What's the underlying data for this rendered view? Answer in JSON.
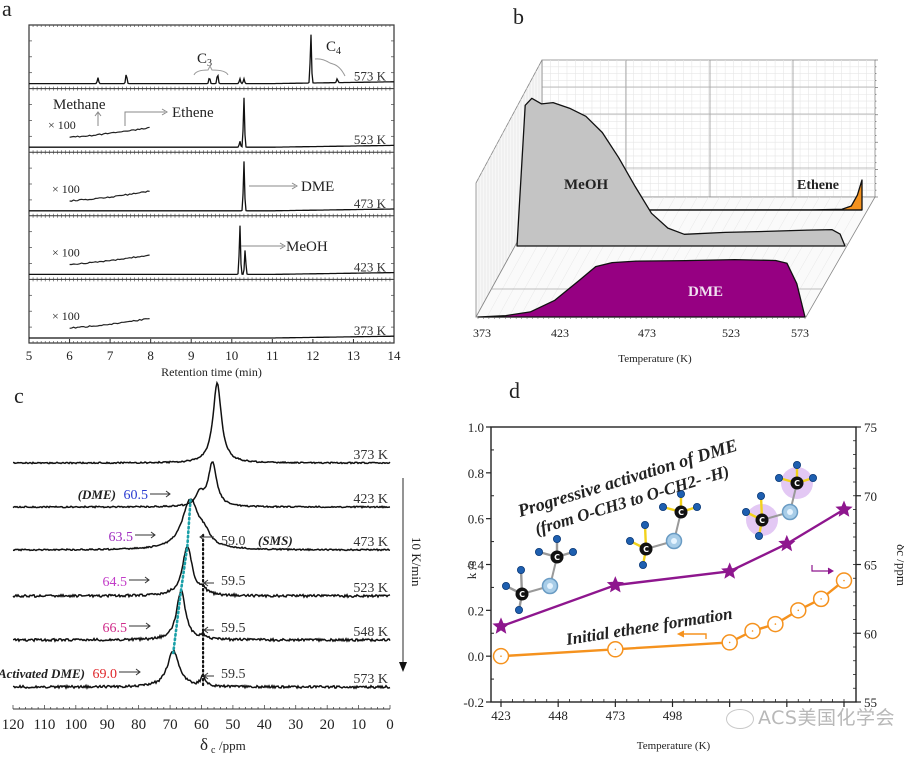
{
  "panels": {
    "a": {
      "letter": "a"
    },
    "b": {
      "letter": "b"
    },
    "c": {
      "letter": "c"
    },
    "d": {
      "letter": "d"
    }
  },
  "watermark": "ACS美国化学会",
  "chart_data": [
    {
      "id": "a",
      "type": "line",
      "title": "",
      "xlabel": "Retention time  (min)",
      "ylabel": "",
      "xlim": [
        5,
        14
      ],
      "x_ticks": [
        "5",
        "6",
        "7",
        "8",
        "9",
        "10",
        "11",
        "12",
        "13",
        "14"
      ],
      "stack_labels": [
        "573 K",
        "523 K",
        "473 K",
        "423 K",
        "373 K"
      ],
      "magnification_label": "× 100",
      "annotations": {
        "c3": "C3",
        "c4": "C4",
        "methane": "Methane",
        "ethene": "Ethene",
        "dme": "DME",
        "meoh": "MeOH"
      },
      "series": [
        {
          "name": "573 K",
          "peaks": [
            {
              "x": 6.7,
              "h": 0.12
            },
            {
              "x": 7.4,
              "h": 0.2
            },
            {
              "x": 9.45,
              "h": 0.13
            },
            {
              "x": 9.65,
              "h": 0.2
            },
            {
              "x": 10.2,
              "h": 0.1
            },
            {
              "x": 10.3,
              "h": 0.1
            },
            {
              "x": 11.95,
              "h": 1.0
            },
            {
              "x": 12.6,
              "h": 0.08
            }
          ]
        },
        {
          "name": "523 K",
          "peaks": [
            {
              "x": 10.2,
              "h": 0.12
            },
            {
              "x": 10.3,
              "h": 1.0
            }
          ]
        },
        {
          "name": "473 K",
          "peaks": [
            {
              "x": 10.3,
              "h": 1.0
            }
          ]
        },
        {
          "name": "423 K",
          "peaks": [
            {
              "x": 10.2,
              "h": 1.0
            },
            {
              "x": 10.33,
              "h": 0.5
            }
          ]
        },
        {
          "name": "373 K",
          "peaks": []
        }
      ]
    },
    {
      "id": "b",
      "type": "area",
      "title": "",
      "xlabel": "Temperature (K)",
      "x_ticks": [
        "373",
        "423",
        "473",
        "523",
        "573"
      ],
      "xlim": [
        373,
        573
      ],
      "series": [
        {
          "name": "MeOH",
          "color": "#c4c4c4",
          "x": [
            373,
            378,
            382,
            388,
            395,
            405,
            415,
            425,
            435,
            445,
            455,
            465,
            475,
            500,
            525,
            550,
            565,
            570,
            573
          ],
          "y": [
            0.0,
            0.95,
            1.0,
            0.96,
            0.97,
            0.93,
            0.88,
            0.77,
            0.6,
            0.4,
            0.22,
            0.12,
            0.08,
            0.09,
            0.1,
            0.11,
            0.11,
            0.08,
            0.0
          ]
        },
        {
          "name": "DME",
          "color": "#960082",
          "x": [
            373,
            390,
            405,
            420,
            435,
            445,
            455,
            470,
            500,
            530,
            555,
            562,
            568,
            573
          ],
          "y": [
            0.0,
            0.02,
            0.08,
            0.25,
            0.55,
            0.75,
            0.82,
            0.84,
            0.85,
            0.85,
            0.84,
            0.8,
            0.5,
            0.0
          ]
        },
        {
          "name": "Ethene",
          "color": "#f5921e",
          "x": [
            373,
            540,
            560,
            566,
            570,
            573
          ],
          "y": [
            0.0,
            0.0,
            0.02,
            0.08,
            0.3,
            0.6
          ]
        }
      ]
    },
    {
      "id": "c",
      "type": "line",
      "title": "",
      "xlabel": "δc /ppm",
      "xlim": [
        120,
        0
      ],
      "x_ticks": [
        "120",
        "110",
        "100",
        "90",
        "80",
        "70",
        "60",
        "50",
        "40",
        "30",
        "20",
        "10",
        "0"
      ],
      "rate_label": "10 K/min",
      "stack_labels": [
        "373 K",
        "423 K",
        "473 K",
        "523 K",
        "548 K",
        "573 K"
      ],
      "annotations": [
        {
          "row": "423 K",
          "prefix": "(DME)",
          "value": "60.5",
          "color": "#2a3bd1"
        },
        {
          "row": "473 K",
          "value": "63.5",
          "color": "#a02ec0"
        },
        {
          "row": "473 K",
          "value": "59.0",
          "suffix": "(SMS)",
          "color": "#333333"
        },
        {
          "row": "523 K",
          "value": "64.5",
          "color": "#c23cc8"
        },
        {
          "row": "523 K",
          "value": "59.5",
          "color": "#333333"
        },
        {
          "row": "548 K",
          "value": "66.5",
          "color": "#d02c8a"
        },
        {
          "row": "548 K",
          "value": "59.5",
          "color": "#333333"
        },
        {
          "row": "573 K",
          "prefix": "(Activated DME)",
          "value": "69.0",
          "color": "#e0282c"
        },
        {
          "row": "573 K",
          "value": "59.5",
          "color": "#333333"
        }
      ],
      "series": [
        {
          "name": "373 K",
          "peaks": [
            {
              "x": 55.0,
              "h": 1.0,
              "w": 1.6
            }
          ]
        },
        {
          "name": "423 K",
          "peaks": [
            {
              "x": 56.5,
              "h": 0.55,
              "w": 1.6
            },
            {
              "x": 60.5,
              "h": 0.15,
              "w": 1.5
            }
          ]
        },
        {
          "name": "473 K",
          "peaks": [
            {
              "x": 63.5,
              "h": 0.62,
              "w": 3.2
            },
            {
              "x": 59.0,
              "h": 0.12,
              "w": 2.0
            }
          ]
        },
        {
          "name": "523 K",
          "peaks": [
            {
              "x": 64.5,
              "h": 0.62,
              "w": 1.9
            },
            {
              "x": 59.5,
              "h": 0.06,
              "w": 1.0
            }
          ]
        },
        {
          "name": "548 K",
          "peaks": [
            {
              "x": 66.5,
              "h": 0.62,
              "w": 1.7
            },
            {
              "x": 59.5,
              "h": 0.05,
              "w": 1.0
            }
          ]
        },
        {
          "name": "573 K",
          "peaks": [
            {
              "x": 69.0,
              "h": 0.45,
              "w": 2.2
            },
            {
              "x": 59.5,
              "h": 0.14,
              "w": 0.8
            }
          ]
        }
      ],
      "guide_lines": [
        {
          "color": "#1aa0a8",
          "points": [
            63.5,
            64.5,
            66.5,
            69.0
          ]
        },
        {
          "color": "#111111",
          "points": [
            59.5,
            59.5,
            59.5,
            59.5
          ]
        }
      ]
    },
    {
      "id": "d",
      "type": "line",
      "title": "",
      "xlabel": "Temperature (K)",
      "ylabel_left": "k /s-1",
      "ylabel_right": "δc /ppm",
      "xlim": [
        423,
        573
      ],
      "ylim_left": [
        -0.2,
        1.0
      ],
      "ylim_right": [
        55,
        75
      ],
      "x_ticks": [
        "423",
        "448",
        "473",
        "498",
        "523",
        "548",
        "573"
      ],
      "y_ticks_left": [
        "-0.2",
        "0.0",
        "0.2",
        "0.4",
        "0.6",
        "0.8",
        "1.0"
      ],
      "y_ticks_right": [
        "55",
        "60",
        "65",
        "70",
        "75"
      ],
      "annotations": {
        "top_line1": "Progressive activation of DME",
        "top_line2": "(from O-CH3 to O-CH2- -H)",
        "bottom": "Initial ethene formation"
      },
      "series": [
        {
          "name": "δc (right axis)",
          "axis": "right",
          "marker": "star",
          "color": "#8e168e",
          "x": [
            423,
            473,
            523,
            548,
            573
          ],
          "y": [
            60.5,
            63.5,
            64.5,
            66.5,
            69.0
          ]
        },
        {
          "name": "k (left axis)",
          "axis": "left",
          "marker": "open-circle",
          "color": "#f5921e",
          "x": [
            423,
            473,
            523,
            533,
            543,
            553,
            563,
            573
          ],
          "y": [
            0.0,
            0.03,
            0.06,
            0.11,
            0.14,
            0.2,
            0.25,
            0.33
          ]
        }
      ]
    }
  ]
}
